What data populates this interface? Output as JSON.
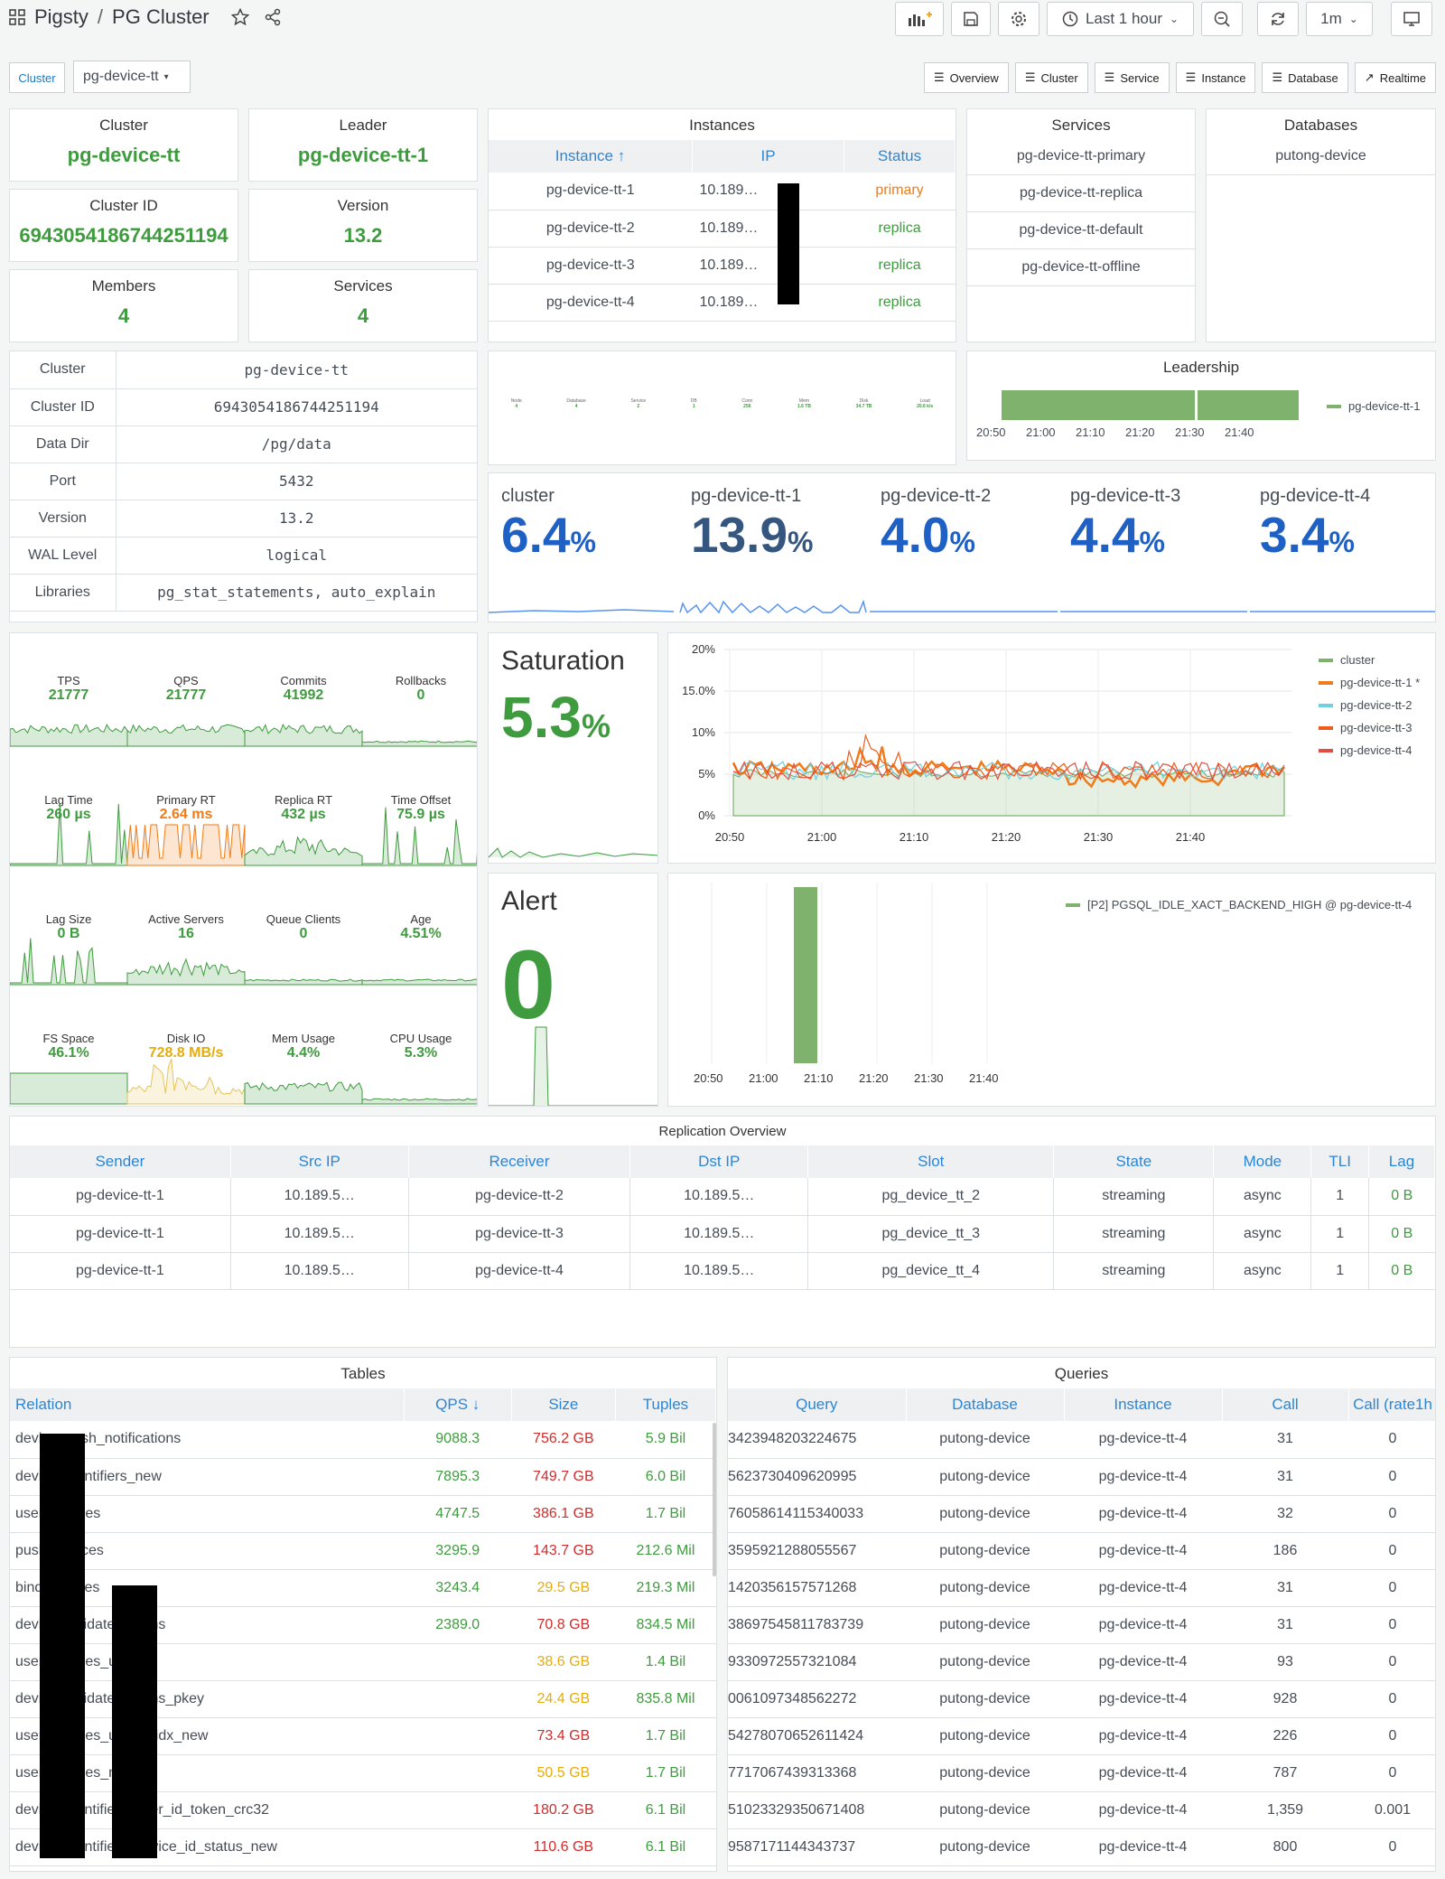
{
  "header": {
    "app": "Pigsty",
    "sep": "/",
    "title": "PG Cluster",
    "time_range": "Last 1 hour",
    "refresh": "1m"
  },
  "vars": {
    "cluster_label": "Cluster",
    "cluster_value": "pg-device-tt"
  },
  "nav": [
    "Overview",
    "Cluster",
    "Service",
    "Instance",
    "Database",
    "Realtime"
  ],
  "stats": {
    "cluster": {
      "title": "Cluster",
      "value": "pg-device-tt"
    },
    "leader": {
      "title": "Leader",
      "value": "pg-device-tt-1"
    },
    "cluster_id": {
      "title": "Cluster ID",
      "value": "6943054186744251194"
    },
    "version": {
      "title": "Version",
      "value": "13.2"
    },
    "members": {
      "title": "Members",
      "value": "4"
    },
    "services": {
      "title": "Services",
      "value": "4"
    }
  },
  "instances": {
    "title": "Instances",
    "headers": [
      "Instance ↑",
      "IP",
      "Status"
    ],
    "rows": [
      [
        "pg-device-tt-1",
        "10.189…",
        "primary"
      ],
      [
        "pg-device-tt-2",
        "10.189…",
        "replica"
      ],
      [
        "pg-device-tt-3",
        "10.189…",
        "replica"
      ],
      [
        "pg-device-tt-4",
        "10.189…",
        "replica"
      ]
    ]
  },
  "services_panel": {
    "title": "Services",
    "items": [
      "pg-device-tt-primary",
      "pg-device-tt-replica",
      "pg-device-tt-default",
      "pg-device-tt-offline"
    ]
  },
  "databases_panel": {
    "title": "Databases",
    "items": [
      "putong-device"
    ]
  },
  "info": [
    [
      "Cluster",
      "pg-device-tt"
    ],
    [
      "Cluster ID",
      "6943054186744251194"
    ],
    [
      "Data Dir",
      "/pg/data"
    ],
    [
      "Port",
      "5432"
    ],
    [
      "Version",
      "13.2"
    ],
    [
      "WAL Level",
      "logical"
    ],
    [
      "Libraries",
      "pg_stat_statements, auto_explain"
    ]
  ],
  "tiny_stats": [
    [
      "Node",
      "4"
    ],
    [
      "Database",
      "4"
    ],
    [
      "Service",
      "2"
    ],
    [
      "DB",
      "1"
    ],
    [
      "Conn",
      "256"
    ],
    [
      "Mem",
      "1.6 TB"
    ],
    [
      "Disk",
      "34.7 TB"
    ],
    [
      "Load",
      "20.6 k/s"
    ]
  ],
  "leadership": {
    "title": "Leadership",
    "legend": "pg-device-tt-1",
    "ticks": [
      "20:50",
      "21:00",
      "21:10",
      "21:20",
      "21:30",
      "21:40"
    ]
  },
  "cpu_gauges": [
    {
      "label": "cluster",
      "value": "6.4",
      "unit": "%"
    },
    {
      "label": "pg-device-tt-1",
      "value": "13.9",
      "unit": "%"
    },
    {
      "label": "pg-device-tt-2",
      "value": "4.0",
      "unit": "%"
    },
    {
      "label": "pg-device-tt-3",
      "value": "4.4",
      "unit": "%"
    },
    {
      "label": "pg-device-tt-4",
      "value": "3.4",
      "unit": "%"
    }
  ],
  "minis": [
    {
      "t": "TPS",
      "v": "21777",
      "c": "#3e9b3e"
    },
    {
      "t": "QPS",
      "v": "21777",
      "c": "#3e9b3e"
    },
    {
      "t": "Commits",
      "v": "41992",
      "c": "#3e9b3e"
    },
    {
      "t": "Rollbacks",
      "v": "0",
      "c": "#3e9b3e"
    },
    {
      "t": "Lag Time",
      "v": "260 µs",
      "c": "#3e9b3e"
    },
    {
      "t": "Primary RT",
      "v": "2.64 ms",
      "c": "#ef7b19"
    },
    {
      "t": "Replica RT",
      "v": "432 µs",
      "c": "#3e9b3e"
    },
    {
      "t": "Time Offset",
      "v": "75.9 µs",
      "c": "#3e9b3e"
    },
    {
      "t": "Lag Size",
      "v": "0 B",
      "c": "#3e9b3e"
    },
    {
      "t": "Active Servers",
      "v": "16",
      "c": "#3e9b3e"
    },
    {
      "t": "Queue Clients",
      "v": "0",
      "c": "#3e9b3e"
    },
    {
      "t": "Age",
      "v": "4.51%",
      "c": "#3e9b3e"
    },
    {
      "t": "FS Space",
      "v": "46.1%",
      "c": "#3e9b3e"
    },
    {
      "t": "Disk IO",
      "v": "728.8 MB/s",
      "c": "#e5ac0e"
    },
    {
      "t": "Mem Usage",
      "v": "4.4%",
      "c": "#3e9b3e"
    },
    {
      "t": "CPU Usage",
      "v": "5.3%",
      "c": "#3e9b3e"
    }
  ],
  "saturation": {
    "title": "Saturation",
    "value": "5.3",
    "unit": "%"
  },
  "alert": {
    "title": "Alert",
    "value": "0"
  },
  "sat_chart": {
    "yticks": [
      "20%",
      "15.0%",
      "10%",
      "5%",
      "0%"
    ],
    "xticks": [
      "20:50",
      "21:00",
      "21:10",
      "21:20",
      "21:30",
      "21:40"
    ],
    "legend": [
      {
        "name": "cluster",
        "color": "#7eb26d"
      },
      {
        "name": "pg-device-tt-1 *",
        "color": "#ef7b19"
      },
      {
        "name": "pg-device-tt-2",
        "color": "#6ed0e0"
      },
      {
        "name": "pg-device-tt-3",
        "color": "#ef5b19"
      },
      {
        "name": "pg-device-tt-4",
        "color": "#e24d42"
      }
    ]
  },
  "alert_chart": {
    "legend": "[P2] PGSQL_IDLE_XACT_BACKEND_HIGH @ pg-device-tt-4",
    "xticks": [
      "20:50",
      "21:00",
      "21:10",
      "21:20",
      "21:30",
      "21:40"
    ]
  },
  "replication": {
    "title": "Replication Overview",
    "headers": [
      "Sender",
      "Src IP",
      "Receiver",
      "Dst IP",
      "Slot",
      "State",
      "Mode",
      "TLI",
      "Lag"
    ],
    "rows": [
      [
        "pg-device-tt-1",
        "10.189.5…",
        "pg-device-tt-2",
        "10.189.5…",
        "pg_device_tt_2",
        "streaming",
        "async",
        "1",
        "0 B"
      ],
      [
        "pg-device-tt-1",
        "10.189.5…",
        "pg-device-tt-3",
        "10.189.5…",
        "pg_device_tt_3",
        "streaming",
        "async",
        "1",
        "0 B"
      ],
      [
        "pg-device-tt-1",
        "10.189.5…",
        "pg-device-tt-4",
        "10.189.5…",
        "pg_device_tt_4",
        "streaming",
        "async",
        "1",
        "0 B"
      ]
    ]
  },
  "tables": {
    "title": "Tables",
    "headers": [
      "Relation",
      "QPS ↓",
      "Size",
      "Tuples"
    ],
    "rows": [
      [
        "device_push_notifications",
        "9088.3",
        "756.2 GB",
        "5.9 Bil"
      ],
      [
        "device_identifiers_new",
        "7895.3",
        "749.7 GB",
        "6.0 Bil"
      ],
      [
        "user_devices",
        "4747.5",
        "386.1 GB",
        "1.7 Bil"
      ],
      [
        "push_devices",
        "3295.9",
        "143.7 GB",
        "212.6 Mil"
      ],
      [
        "bind_devices",
        "3243.4",
        "29.5 GB",
        "219.3 Mil"
      ],
      [
        "device_validate_tokens",
        "2389.0",
        "70.8 GB",
        "834.5 Mil"
      ],
      [
        "user_devices_uid_idx",
        "",
        "38.6 GB",
        "1.4 Bil"
      ],
      [
        "device_validate_tokens_pkey",
        "",
        "24.4 GB",
        "835.8 Mil"
      ],
      [
        "user_devices_uid_id_idx_new",
        "",
        "73.4 GB",
        "1.7 Bil"
      ],
      [
        "user_devices_new",
        "",
        "50.5 GB",
        "1.7 Bil"
      ],
      [
        "device_identifiers_user_id_token_crc32",
        "",
        "180.2 GB",
        "6.1 Bil"
      ],
      [
        "device_identifiers_device_id_status_new",
        "",
        "110.6 GB",
        "6.1 Bil"
      ]
    ]
  },
  "queries": {
    "title": "Queries",
    "headers": [
      "Query",
      "Database",
      "Instance",
      "Call",
      "Call (rate1h"
    ],
    "rows": [
      [
        "3423948203224675",
        "putong-device",
        "pg-device-tt-4",
        "31",
        "0"
      ],
      [
        "5623730409620995",
        "putong-device",
        "pg-device-tt-4",
        "31",
        "0"
      ],
      [
        "76058614115340033",
        "putong-device",
        "pg-device-tt-4",
        "32",
        "0"
      ],
      [
        "3595921288055567",
        "putong-device",
        "pg-device-tt-4",
        "186",
        "0"
      ],
      [
        "1420356157571268",
        "putong-device",
        "pg-device-tt-4",
        "31",
        "0"
      ],
      [
        "38697545811783739",
        "putong-device",
        "pg-device-tt-4",
        "31",
        "0"
      ],
      [
        "9330972557321084",
        "putong-device",
        "pg-device-tt-4",
        "93",
        "0"
      ],
      [
        "0061097348562272",
        "putong-device",
        "pg-device-tt-4",
        "928",
        "0"
      ],
      [
        "54278070652611424",
        "putong-device",
        "pg-device-tt-4",
        "226",
        "0"
      ],
      [
        "7717067439313368",
        "putong-device",
        "pg-device-tt-4",
        "787",
        "0"
      ],
      [
        "51023329350671408",
        "putong-device",
        "pg-device-tt-4",
        "1,359",
        "0.001"
      ],
      [
        "9587171144343737",
        "putong-device",
        "pg-device-tt-4",
        "800",
        "0"
      ]
    ]
  },
  "colors": {
    "green": "#3e9b3e",
    "blue": "#1f60c4",
    "orange": "#ef7b19",
    "header_blue": "#2b86d6"
  }
}
